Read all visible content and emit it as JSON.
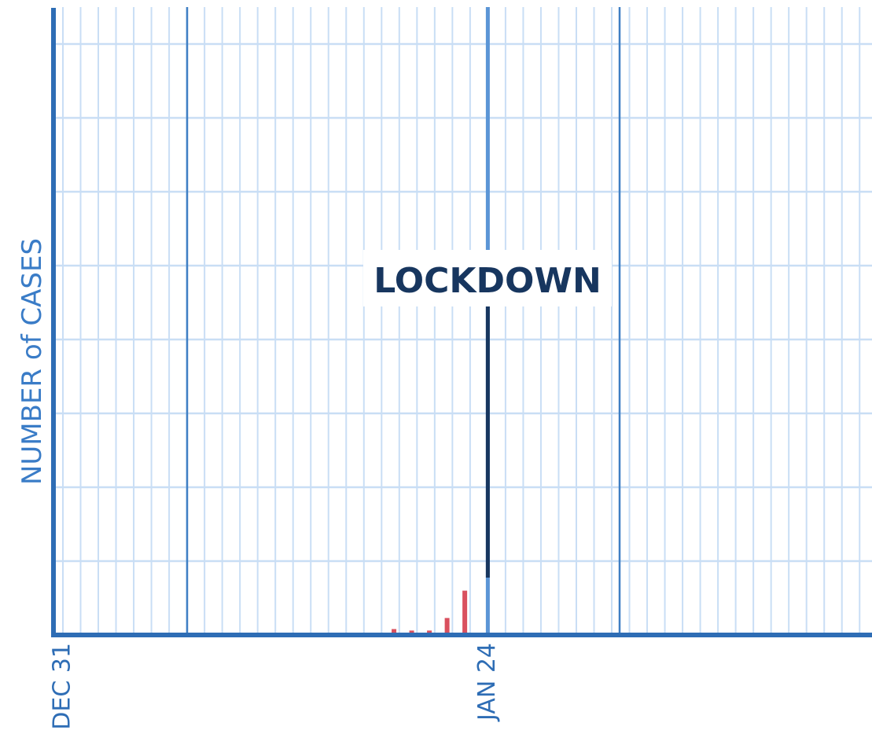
{
  "chart_data": {
    "type": "bar",
    "y_label": "NUMBER of CASES",
    "x": [
      18.7,
      19.7,
      20.7,
      21.7,
      22.7
    ],
    "values": [
      0.08,
      0.06,
      0.06,
      0.23,
      0.6
    ],
    "color": "#d9505e",
    "xlim": [
      0,
      45.7
    ],
    "xticks": [
      {
        "value": 0,
        "label": "DEC 31"
      },
      {
        "value": 24,
        "label": "JAN 24"
      }
    ],
    "ylim": [
      0,
      8.5
    ],
    "yticks": [
      0,
      1,
      2,
      3,
      4,
      5,
      6,
      7,
      8
    ],
    "grid": true,
    "annotation": "LOCKDOWN"
  }
}
